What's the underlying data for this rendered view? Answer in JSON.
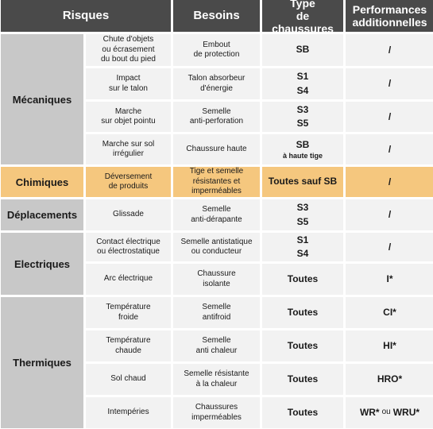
{
  "headers": {
    "risques": "Risques",
    "besoins": "Besoins",
    "type": "Type\nde chaussures",
    "performances": "Performances\nadditionnelles"
  },
  "groups": [
    {
      "category": "Mécaniques",
      "rows": [
        {
          "risk": "Chute d'objets\nou écrasement\ndu bout du pied",
          "need": "Embout\nde protection",
          "type": "SB",
          "type_note": "",
          "perf": "/"
        },
        {
          "risk": "Impact\nsur le talon",
          "need": "Talon absorbeur\nd'énergie",
          "type": "S1\nS4",
          "type_note": "",
          "perf": "/"
        },
        {
          "risk": "Marche\nsur objet pointu",
          "need": "Semelle\nanti-perforation",
          "type": "S3\nS5",
          "type_note": "",
          "perf": "/"
        },
        {
          "risk": "Marche sur sol\nirrégulier",
          "need": "Chaussure haute",
          "type": "SB",
          "type_note": "à haute tige",
          "perf": "/"
        }
      ]
    },
    {
      "category": "Chimiques",
      "highlight": true,
      "rows": [
        {
          "risk": "Déversement\nde produits",
          "need": "Tige et semelle\nrésistantes et\nimperméables",
          "type": "Toutes sauf SB",
          "type_note": "",
          "perf": "/"
        }
      ]
    },
    {
      "category": "Déplacements",
      "rows": [
        {
          "risk": "Glissade",
          "need": "Semelle\nanti-dérapante",
          "type": "S3\nS5",
          "type_note": "",
          "perf": "/"
        }
      ]
    },
    {
      "category": "Electriques",
      "rows": [
        {
          "risk": "Contact électrique\nou électrostatique",
          "need": "Semelle antistatique\nou conducteur",
          "type": "S1\nS4",
          "type_note": "",
          "perf": "/"
        },
        {
          "risk": "Arc électrique",
          "need": "Chaussure\nisolante",
          "type": "Toutes",
          "type_note": "",
          "perf": "I*"
        }
      ]
    },
    {
      "category": "Thermiques",
      "rows": [
        {
          "risk": "Température\nfroide",
          "need": "Semelle\nantifroid",
          "type": "Toutes",
          "type_note": "",
          "perf": "CI*"
        },
        {
          "risk": "Température\nchaude",
          "need": "Semelle\nanti chaleur",
          "type": "Toutes",
          "type_note": "",
          "perf": "HI*"
        },
        {
          "risk": "Sol chaud",
          "need": "Semelle résistante\nà la chaleur",
          "type": "Toutes",
          "type_note": "",
          "perf": "HRO*"
        },
        {
          "risk": "Intempéries",
          "need": "Chaussures\nimperméables",
          "type": "Toutes",
          "type_note": "",
          "perf": "WR*",
          "perf_join": "ou",
          "perf_alt": "WRU*"
        }
      ]
    }
  ]
}
